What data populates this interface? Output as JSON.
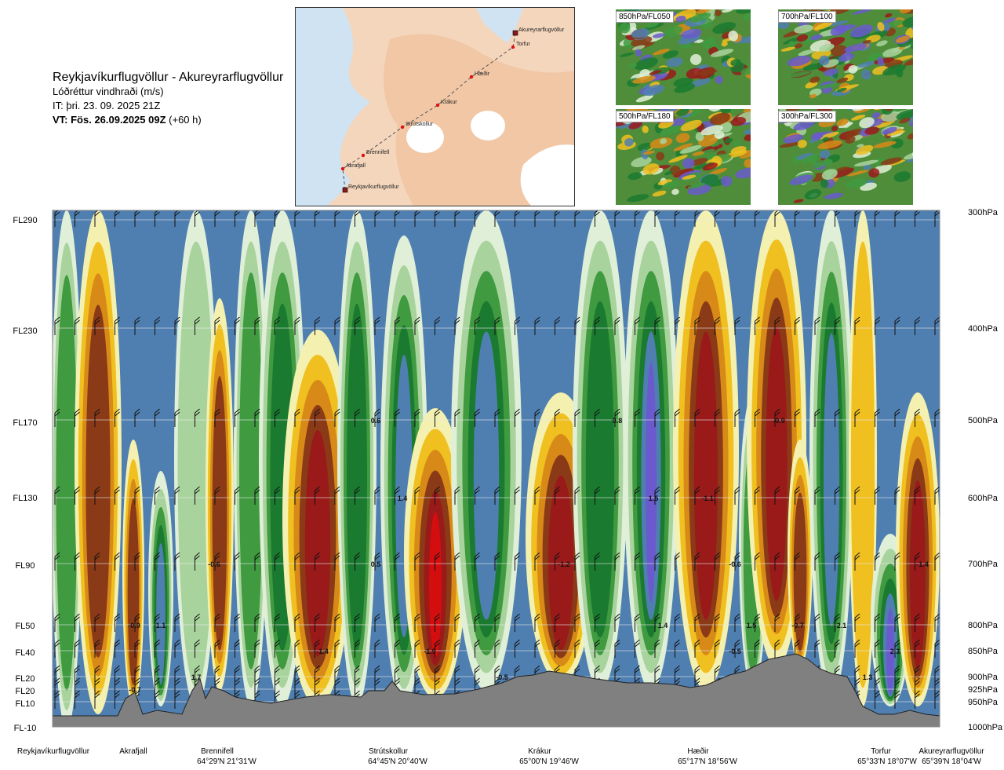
{
  "title": {
    "route": "Reykjavíkurflugvöllur - Akureyrarflugvöllur",
    "parameter": "Lóðréttur vindhraði (m/s)",
    "issue_time": "IT: þri. 23. 09. 2025 21Z",
    "valid_prefix": "VT: Fös. 26.09.2025 09Z",
    "valid_lead": "(+60 h)"
  },
  "route_map": {
    "points": [
      {
        "name": "Akureyrarflugvöllur"
      },
      {
        "name": "Torfur"
      },
      {
        "name": "Hæðir"
      },
      {
        "name": "Krákur"
      },
      {
        "name": "Strútskollur"
      },
      {
        "name": "Brennifell"
      },
      {
        "name": "Akrafjall"
      },
      {
        "name": "Reykjavíkurflugvöllur"
      }
    ]
  },
  "thumbnails": [
    {
      "label": "850hPa/FL050"
    },
    {
      "label": "700hPa/FL100"
    },
    {
      "label": "500hPa/FL180"
    },
    {
      "label": "300hPa/FL300"
    }
  ],
  "colors": {
    "purple": "#6a5acd",
    "steel": "#4f7fb0",
    "dgreen": "#1a7a30",
    "green": "#3f9a40",
    "lgreen": "#a9d39d",
    "pale": "#e0f0d8",
    "lyellow": "#f4f0b0",
    "yellow": "#f0c020",
    "orange": "#d88a18",
    "brown": "#8a3a16",
    "dred": "#9a1a1a",
    "red": "#d40e0e",
    "terrain": "#808080"
  },
  "chart_data": {
    "type": "heatmap",
    "title": "Lóðréttur vindhraði (m/s)",
    "y_axis_left": {
      "labels": [
        "FL290",
        "FL230",
        "FL170",
        "FL130",
        "FL90",
        "FL50",
        "FL40",
        "FL20",
        "FL20",
        "FL10",
        "FL-10"
      ]
    },
    "y_axis_right": {
      "labels": [
        "300hPa",
        "400hPa",
        "500hPa",
        "600hPa",
        "700hPa",
        "800hPa",
        "850hPa",
        "900hPa",
        "925hPa",
        "950hPa",
        "1000hPa"
      ],
      "pressure_hpa": [
        300,
        400,
        500,
        600,
        700,
        800,
        850,
        900,
        925,
        950,
        1000
      ],
      "range": [
        1000,
        300
      ]
    },
    "x_axis": {
      "waypoints": [
        {
          "name": "Reykjavíkurflugvöllur",
          "coord": ""
        },
        {
          "name": "Akrafjall",
          "coord": ""
        },
        {
          "name": "Brennifell",
          "coord": "64°29'N 21°31'W"
        },
        {
          "name": "Strútskollur",
          "coord": "64°45'N 20°40'W"
        },
        {
          "name": "Krákur",
          "coord": "65°00'N 19°46'W"
        },
        {
          "name": "Hæðir",
          "coord": "65°17'N 18°56'W"
        },
        {
          "name": "Torfur",
          "coord": "65°33'N 18°07'W"
        },
        {
          "name": "Akureyrarflugvöllur",
          "coord": "65°39'N 18°04'W"
        }
      ]
    },
    "annotations": [
      {
        "text": "0.6",
        "hpa": 500
      },
      {
        "text": "0.8",
        "hpa": 500
      },
      {
        "text": "-0.9",
        "hpa": 500
      },
      {
        "text": "1.4",
        "hpa": 600
      },
      {
        "text": "1.5",
        "hpa": 600
      },
      {
        "text": "-1.1",
        "hpa": 600
      },
      {
        "text": "-0.6",
        "hpa": 700
      },
      {
        "text": "0.5",
        "hpa": 700
      },
      {
        "text": "-1.2",
        "hpa": 700
      },
      {
        "text": "-0.6",
        "hpa": 700
      },
      {
        "text": "-1.4",
        "hpa": 700
      },
      {
        "text": "-0.9",
        "hpa": 800
      },
      {
        "text": "1.1",
        "hpa": 800
      },
      {
        "text": "1.4",
        "hpa": 800
      },
      {
        "text": "1.5",
        "hpa": 800
      },
      {
        "text": "-0.7",
        "hpa": 800
      },
      {
        "text": "2.1",
        "hpa": 800
      },
      {
        "text": "-1.4",
        "hpa": 850
      },
      {
        "text": "-1.9",
        "hpa": 850
      },
      {
        "text": "-0.5",
        "hpa": 850
      },
      {
        "text": "2.3",
        "hpa": 850
      },
      {
        "text": "1.7",
        "hpa": 900
      },
      {
        "text": "-0.5",
        "hpa": 900
      },
      {
        "text": "1.3",
        "hpa": 900
      },
      {
        "text": "-0.7",
        "hpa": 925
      }
    ]
  }
}
